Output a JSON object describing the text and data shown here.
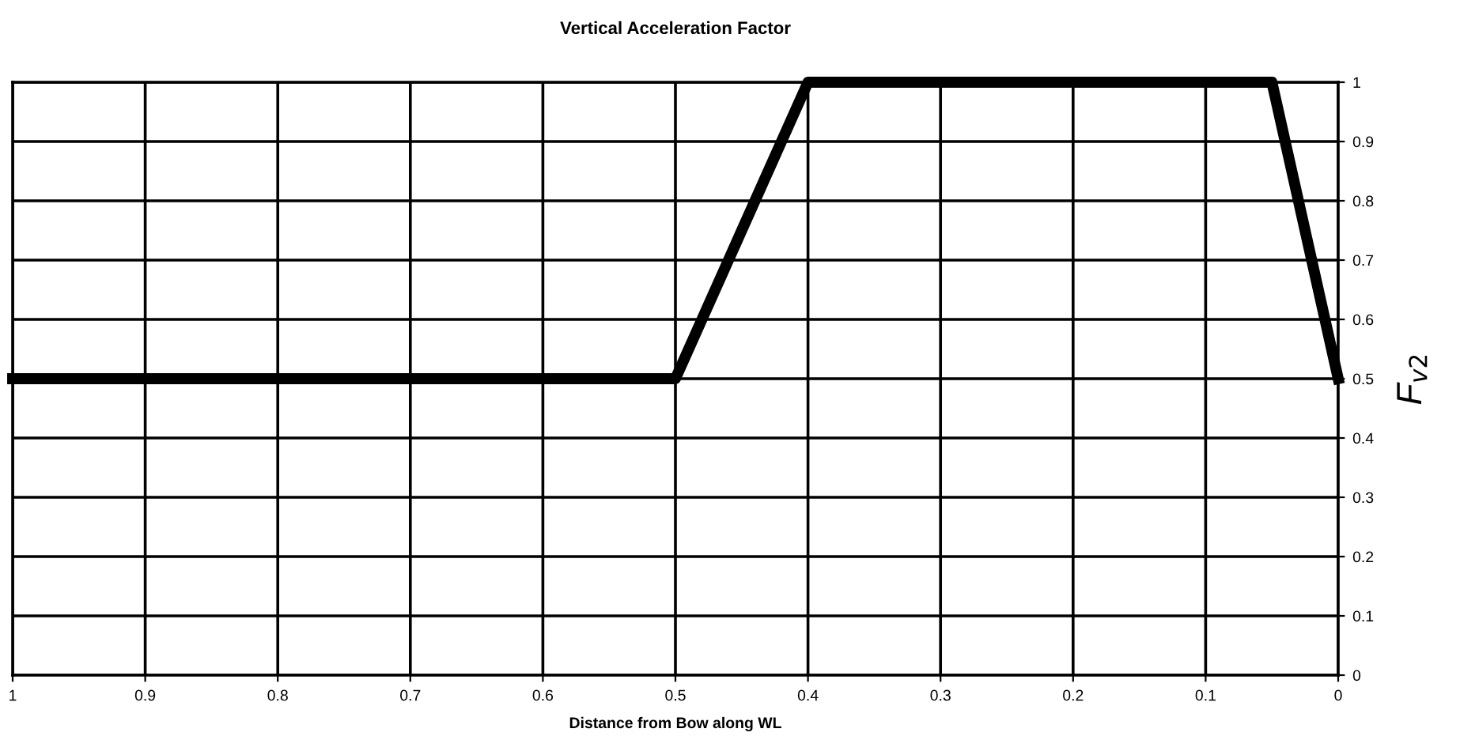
{
  "chart_data": {
    "type": "line",
    "title": "Vertical Acceleration Factor",
    "xlabel": "Distance from Bow along WL",
    "ylabel": "F$_{v2}$",
    "x": [
      1,
      0.5,
      0.4,
      0.05,
      0
    ],
    "series": [
      {
        "color": "#000000",
        "values": [
          0.5,
          0.5,
          1,
          1,
          0.5
        ]
      }
    ],
    "xlim": [
      1,
      0
    ],
    "xticks": [
      1,
      0.9,
      0.8,
      0.7,
      0.6,
      0.5,
      0.4,
      0.3,
      0.2,
      0.1,
      0
    ],
    "ylim": [
      0,
      1
    ],
    "yticks": [
      0,
      0.1,
      0.2,
      0.3,
      0.4,
      0.5,
      0.6,
      0.7,
      0.8,
      0.9,
      1
    ],
    "grid": true,
    "marker": "none",
    "line_style": "solid"
  }
}
